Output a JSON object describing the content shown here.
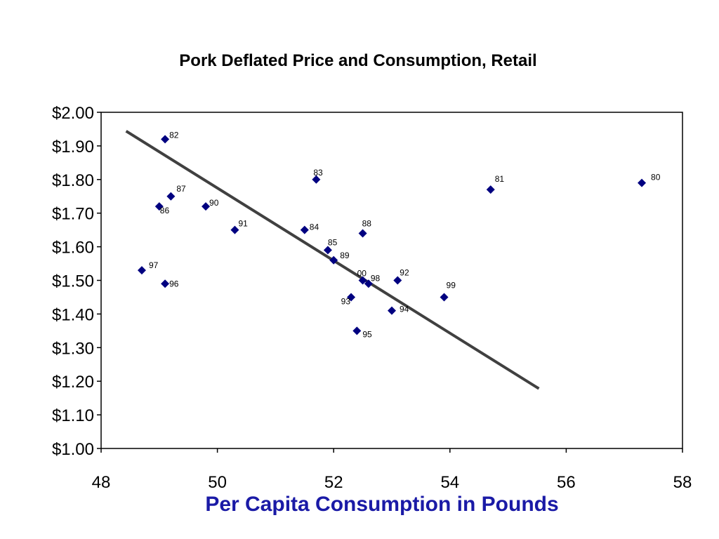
{
  "chart_data": {
    "type": "scatter",
    "title": "Pork Deflated Price and Consumption, Retail",
    "xlabel": "Per Capita Consumption in Pounds",
    "ylabel": "",
    "xlim": [
      48,
      58
    ],
    "ylim": [
      1.0,
      2.0
    ],
    "x_ticks": [
      "48",
      "50",
      "52",
      "54",
      "56",
      "58"
    ],
    "y_ticks": [
      "$1.00",
      "$1.10",
      "$1.20",
      "$1.30",
      "$1.40",
      "$1.50",
      "$1.60",
      "$1.70",
      "$1.80",
      "$1.90",
      "$2.00"
    ],
    "grid": false,
    "marker": "diamond",
    "marker_color": "#000080",
    "trend_color": "#404040",
    "xlabel_color": "#1a1aa6",
    "points": [
      {
        "label": "80",
        "x": 57.3,
        "y": 1.79
      },
      {
        "label": "81",
        "x": 54.7,
        "y": 1.77
      },
      {
        "label": "82",
        "x": 49.1,
        "y": 1.92
      },
      {
        "label": "83",
        "x": 51.7,
        "y": 1.8
      },
      {
        "label": "84",
        "x": 51.5,
        "y": 1.65
      },
      {
        "label": "85",
        "x": 51.9,
        "y": 1.59
      },
      {
        "label": "86",
        "x": 49.0,
        "y": 1.72
      },
      {
        "label": "87",
        "x": 49.2,
        "y": 1.75
      },
      {
        "label": "88",
        "x": 52.5,
        "y": 1.64
      },
      {
        "label": "89",
        "x": 52.0,
        "y": 1.56
      },
      {
        "label": "90",
        "x": 49.8,
        "y": 1.72
      },
      {
        "label": "91",
        "x": 50.3,
        "y": 1.65
      },
      {
        "label": "92",
        "x": 53.1,
        "y": 1.5
      },
      {
        "label": "93",
        "x": 52.3,
        "y": 1.45
      },
      {
        "label": "94",
        "x": 53.0,
        "y": 1.41
      },
      {
        "label": "95",
        "x": 52.4,
        "y": 1.35
      },
      {
        "label": "96",
        "x": 49.1,
        "y": 1.49
      },
      {
        "label": "97",
        "x": 48.7,
        "y": 1.53
      },
      {
        "label": "98",
        "x": 52.6,
        "y": 1.49
      },
      {
        "label": "99",
        "x": 53.9,
        "y": 1.45
      },
      {
        "label": "00",
        "x": 52.5,
        "y": 1.5
      }
    ],
    "trendline": {
      "x": [
        48.43,
        55.53
      ],
      "y": [
        1.944,
        1.178
      ]
    }
  }
}
